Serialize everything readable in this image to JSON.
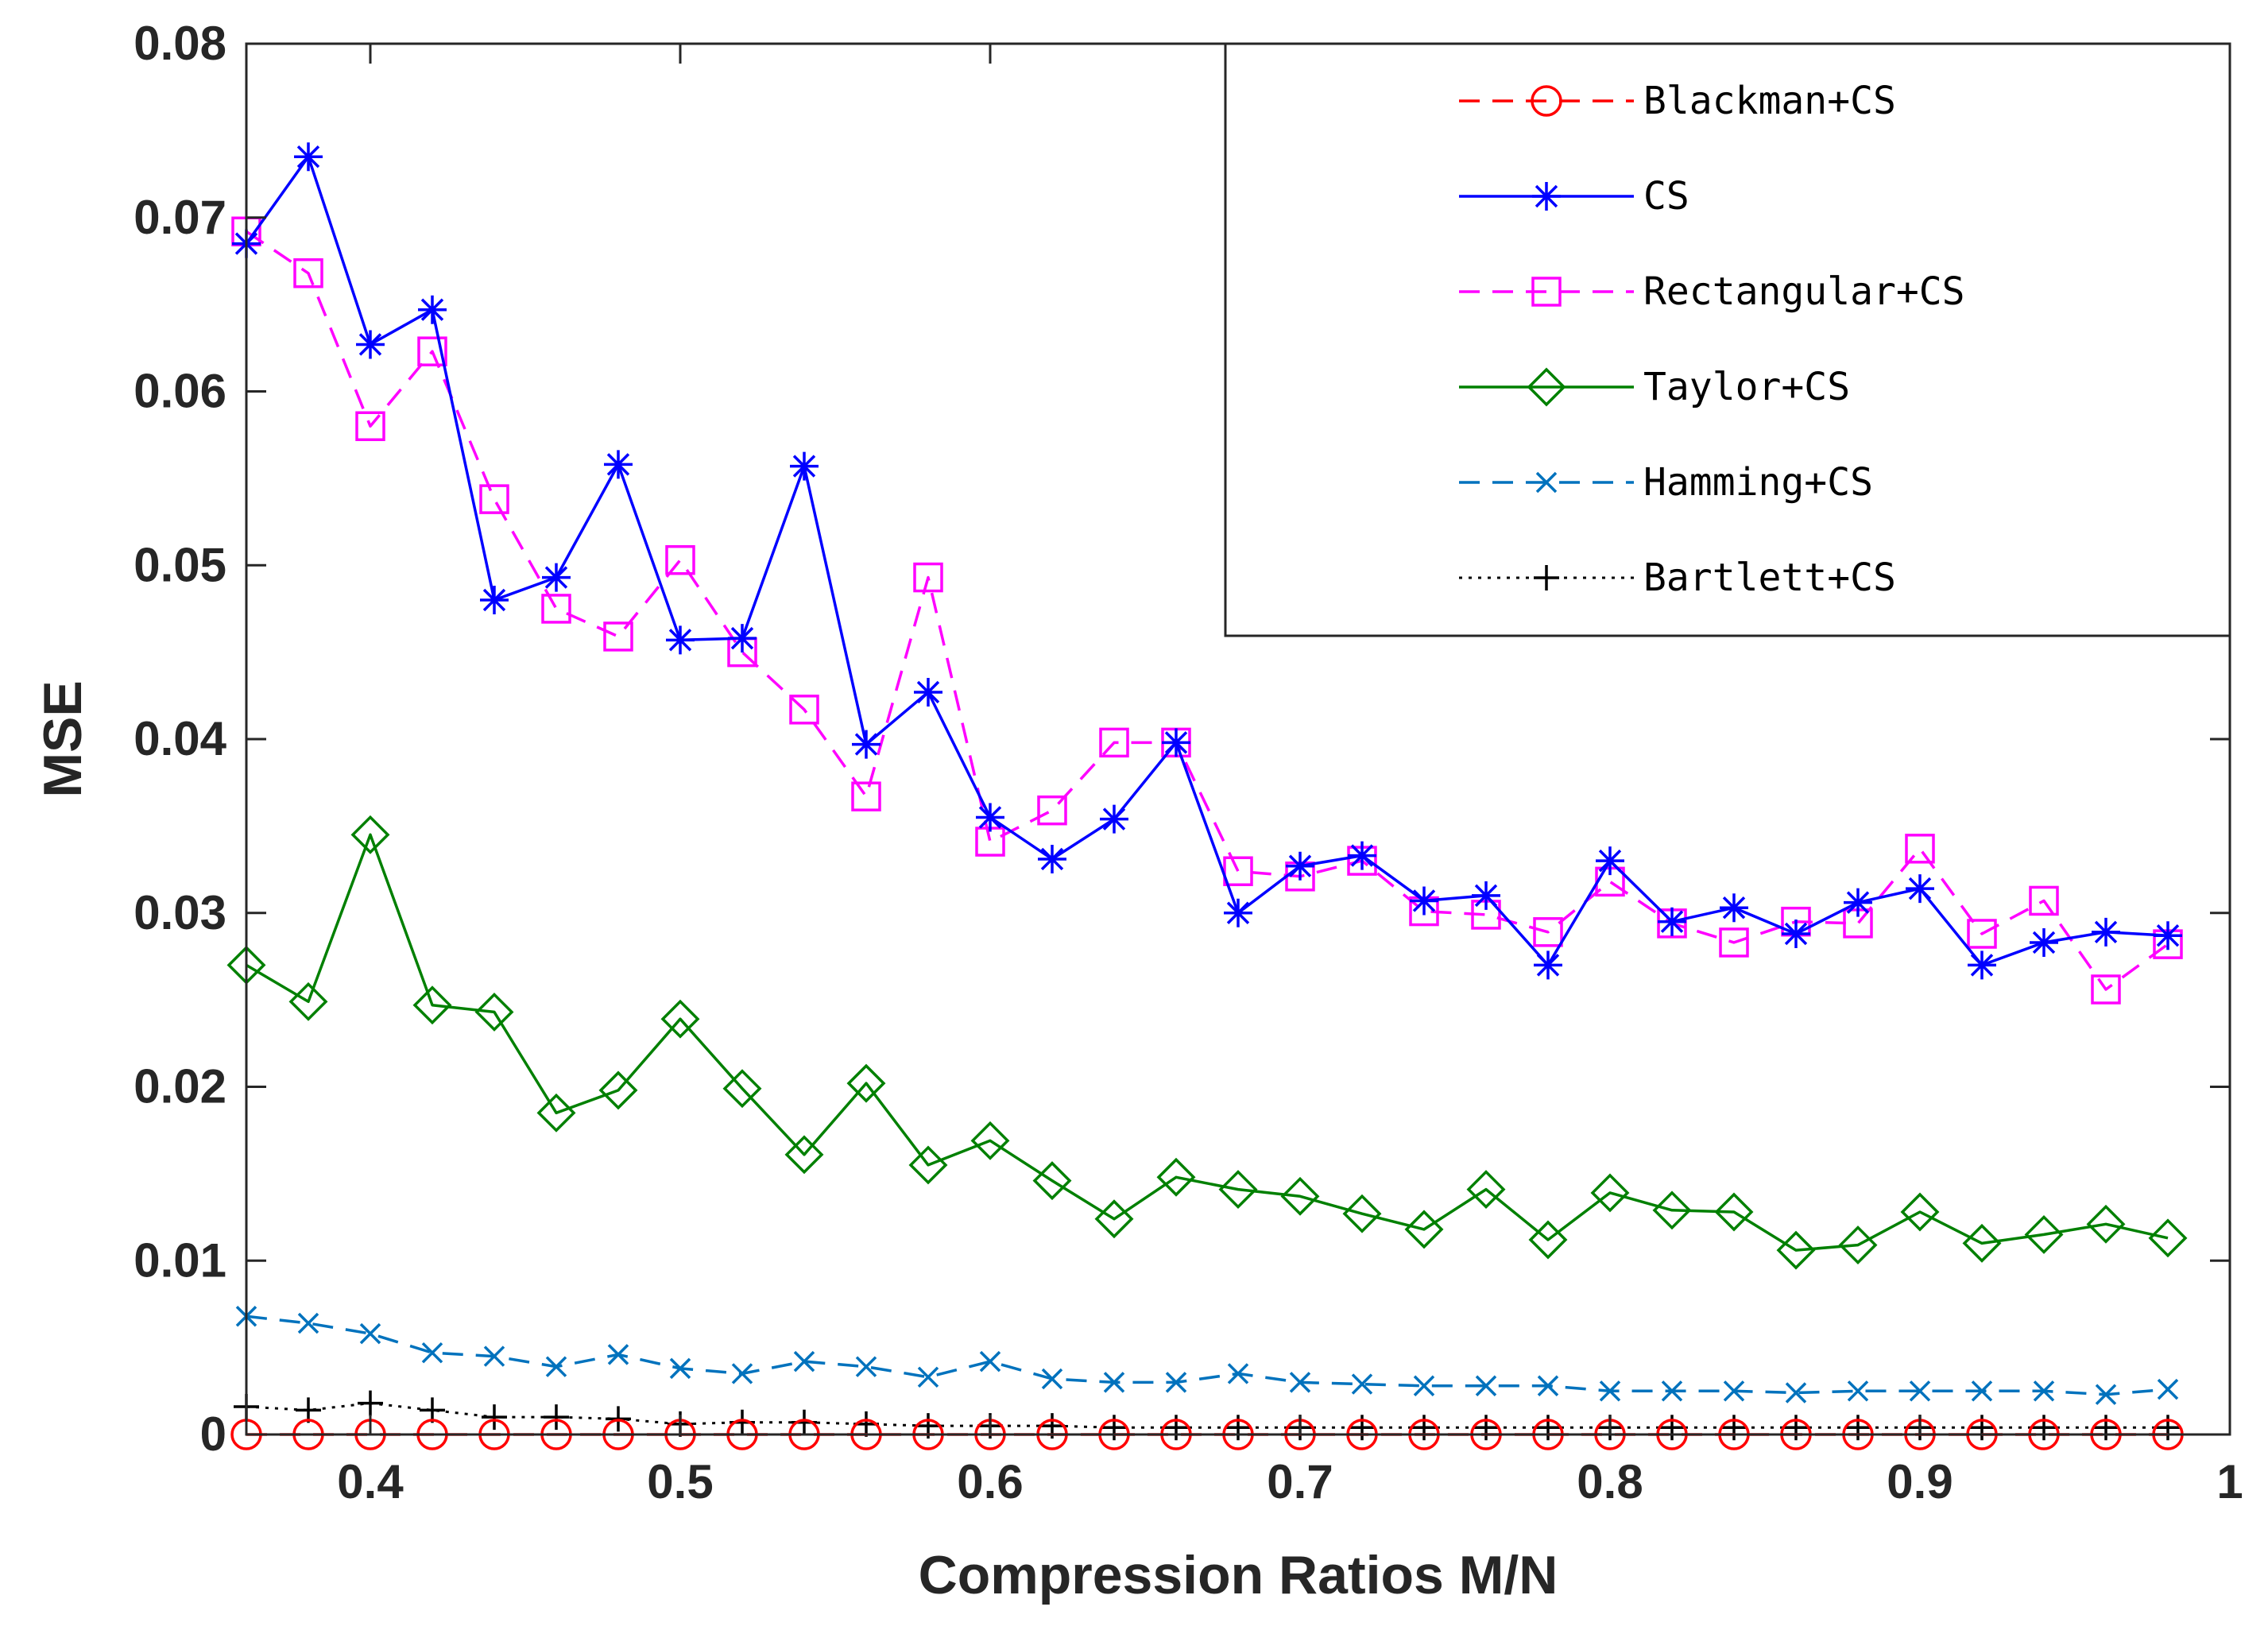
{
  "chart_data": {
    "type": "line",
    "xlabel": "Compression Ratios M/N",
    "ylabel": "MSE",
    "xlim": [
      0.36,
      1.0
    ],
    "ylim": [
      0,
      0.08
    ],
    "x_ticks": [
      "0.4",
      "0.5",
      "0.6",
      "0.7",
      "0.8",
      "0.9",
      "1"
    ],
    "y_ticks": [
      "0",
      "0.01",
      "0.02",
      "0.03",
      "0.04",
      "0.05",
      "0.06",
      "0.07",
      "0.08"
    ],
    "x_tick_values": [
      0.4,
      0.5,
      0.6,
      0.7,
      0.8,
      0.9,
      1.0
    ],
    "y_tick_values": [
      0,
      0.01,
      0.02,
      0.03,
      0.04,
      0.05,
      0.06,
      0.07,
      0.08
    ],
    "legend_position": "top-right",
    "x": [
      0.36,
      0.38,
      0.4,
      0.42,
      0.44,
      0.46,
      0.48,
      0.5,
      0.52,
      0.54,
      0.56,
      0.58,
      0.6,
      0.62,
      0.64,
      0.66,
      0.68,
      0.7,
      0.72,
      0.74,
      0.76,
      0.78,
      0.8,
      0.82,
      0.84,
      0.86,
      0.88,
      0.9,
      0.92,
      0.94,
      0.96,
      0.98
    ],
    "series": [
      {
        "name": "Blackman+CS",
        "color": "#ff0000",
        "dash": "dashed",
        "marker": "circle",
        "values": [
          0,
          0,
          0,
          0,
          0,
          0,
          0,
          0,
          0,
          0,
          0,
          0,
          0,
          0,
          0,
          0,
          0,
          0,
          0,
          0,
          0,
          0,
          0,
          0,
          0,
          0,
          0,
          0,
          0,
          0,
          0,
          0
        ]
      },
      {
        "name": "CS",
        "color": "#0000ff",
        "dash": "solid",
        "marker": "asterisk",
        "values": [
          0.0685,
          0.0735,
          0.0627,
          0.0647,
          0.048,
          0.0493,
          0.0558,
          0.0457,
          0.0458,
          0.0557,
          0.0397,
          0.0427,
          0.0355,
          0.0331,
          0.0354,
          0.0398,
          0.03,
          0.0327,
          0.0333,
          0.0307,
          0.031,
          0.027,
          0.033,
          0.0295,
          0.0303,
          0.0288,
          0.0306,
          0.0314,
          0.027,
          0.0283,
          0.0289,
          0.0287
        ]
      },
      {
        "name": "Rectangular+CS",
        "color": "#ff00ff",
        "dash": "dashed",
        "marker": "square",
        "values": [
          0.0692,
          0.0668,
          0.058,
          0.0623,
          0.0538,
          0.0475,
          0.0459,
          0.0503,
          0.045,
          0.0417,
          0.0367,
          0.0493,
          0.0341,
          0.0359,
          0.0398,
          0.0398,
          0.0324,
          0.0321,
          0.033,
          0.0301,
          0.0299,
          0.0289,
          0.0318,
          0.0294,
          0.0283,
          0.0295,
          0.0294,
          0.0337,
          0.0288,
          0.0307,
          0.0256,
          0.0282
        ]
      },
      {
        "name": "Taylor+CS",
        "color": "#008000",
        "dash": "solid",
        "marker": "diamond",
        "values": [
          0.027,
          0.0249,
          0.0345,
          0.0247,
          0.0243,
          0.0185,
          0.0198,
          0.0239,
          0.0199,
          0.0161,
          0.0202,
          0.0155,
          0.0169,
          0.0146,
          0.0124,
          0.0148,
          0.0141,
          0.0137,
          0.0127,
          0.0118,
          0.0141,
          0.0112,
          0.0139,
          0.0129,
          0.0128,
          0.0106,
          0.0109,
          0.0128,
          0.011,
          0.0115,
          0.0121,
          0.0113
        ]
      },
      {
        "name": "Hamming+CS",
        "color": "#0072bd",
        "dash": "dashed",
        "marker": "x",
        "values": [
          0.0068,
          0.0064,
          0.0058,
          0.0047,
          0.0045,
          0.0039,
          0.0046,
          0.0038,
          0.0035,
          0.0042,
          0.0039,
          0.0033,
          0.0042,
          0.0032,
          0.003,
          0.003,
          0.0035,
          0.003,
          0.0029,
          0.0028,
          0.0028,
          0.0028,
          0.0025,
          0.0025,
          0.0025,
          0.0024,
          0.0025,
          0.0025,
          0.0025,
          0.0025,
          0.0023,
          0.0026
        ]
      },
      {
        "name": "Bartlett+CS",
        "color": "#000000",
        "dash": "dotted",
        "marker": "plus",
        "values": [
          0.0016,
          0.0014,
          0.0018,
          0.0014,
          0.001,
          0.001,
          0.0009,
          0.0006,
          0.0007,
          0.0007,
          0.0006,
          0.0005,
          0.0005,
          0.0005,
          0.0004,
          0.0004,
          0.0004,
          0.0004,
          0.0004,
          0.0004,
          0.0004,
          0.0004,
          0.0004,
          0.0004,
          0.0004,
          0.0004,
          0.0004,
          0.0004,
          0.0004,
          0.0004,
          0.0004,
          0.0004
        ]
      }
    ]
  }
}
